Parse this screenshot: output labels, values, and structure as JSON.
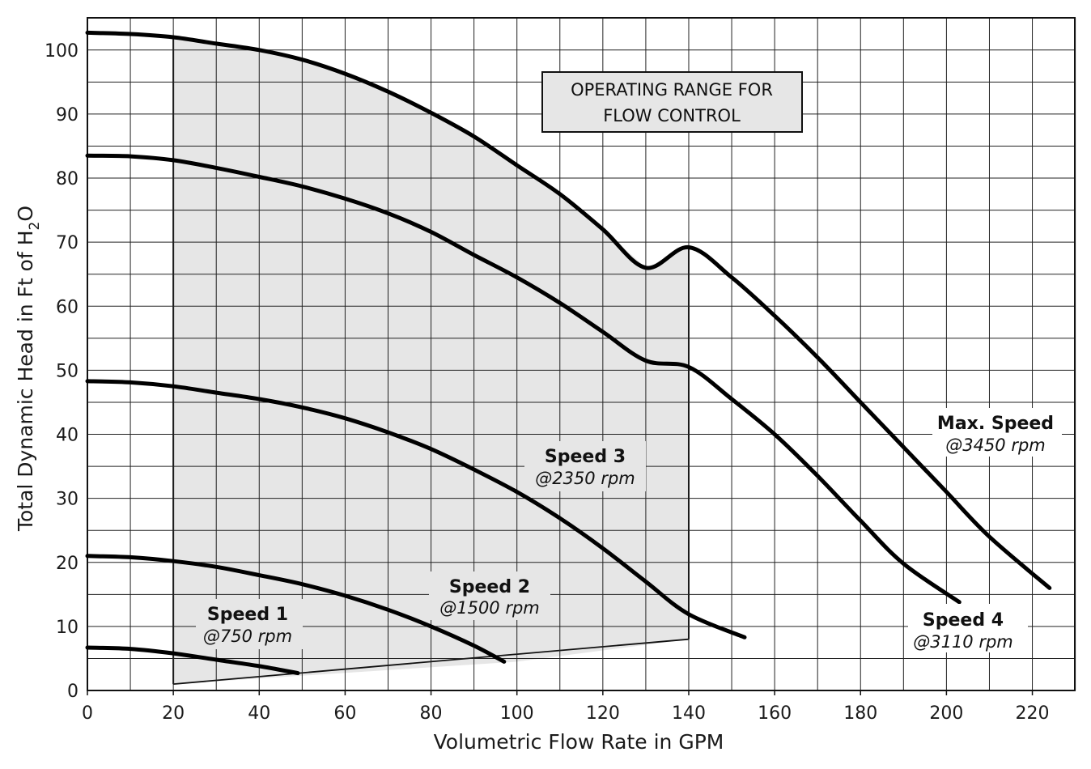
{
  "chart_data": {
    "type": "line",
    "xlabel": "Volumetric Flow Rate in GPM",
    "ylabel": "Total Dynamic Head in Ft of H2O",
    "ylabel_parts": {
      "main": "Total Dynamic Head in Ft of H",
      "sub": "2",
      "end": "O"
    },
    "xlim": [
      0,
      230
    ],
    "ylim": [
      0,
      105
    ],
    "x_ticks": [
      0,
      20,
      40,
      60,
      80,
      100,
      120,
      140,
      160,
      180,
      200,
      220
    ],
    "y_ticks": [
      0,
      10,
      20,
      30,
      40,
      50,
      60,
      70,
      80,
      90,
      100
    ],
    "grid": true,
    "operating_range": {
      "label_line1": "OPERATING RANGE FOR",
      "label_line2": "FLOW CONTROL",
      "fill_color": "#e6e6e6",
      "polygon": [
        [
          20,
          1
        ],
        [
          20,
          102
        ],
        [
          30,
          101
        ],
        [
          40,
          100
        ],
        [
          50,
          98.5
        ],
        [
          60,
          96.3
        ],
        [
          70,
          93.5
        ],
        [
          80,
          90.2
        ],
        [
          90,
          86.5
        ],
        [
          100,
          82
        ],
        [
          110,
          77.5
        ],
        [
          120,
          72
        ],
        [
          130,
          66
        ],
        [
          140,
          69.2
        ],
        [
          140,
          8
        ],
        [
          100,
          4.5
        ],
        [
          20,
          1
        ]
      ],
      "bounds": {
        "x_min": 20,
        "x_max": 140
      }
    },
    "series": [
      {
        "name": "Speed 1",
        "rpm": "@750 rpm",
        "x": [
          0,
          10,
          20,
          30,
          40,
          49
        ],
        "y": [
          6.7,
          6.5,
          5.8,
          4.8,
          3.8,
          2.7
        ]
      },
      {
        "name": "Speed 2",
        "rpm": "@1500 rpm",
        "x": [
          0,
          10,
          20,
          30,
          40,
          50,
          60,
          70,
          80,
          90,
          97
        ],
        "y": [
          21,
          20.8,
          20.2,
          19.3,
          18.0,
          16.6,
          14.8,
          12.6,
          10.0,
          7.0,
          4.5
        ]
      },
      {
        "name": "Speed 3",
        "rpm": "@2350 rpm",
        "x": [
          0,
          10,
          20,
          30,
          40,
          50,
          60,
          70,
          80,
          90,
          100,
          110,
          120,
          130,
          140,
          153
        ],
        "y": [
          48.3,
          48.1,
          47.5,
          46.5,
          45.5,
          44.2,
          42.5,
          40.3,
          37.7,
          34.5,
          31.0,
          26.9,
          22.2,
          17.0,
          11.9,
          8.3
        ]
      },
      {
        "name": "Speed 4",
        "rpm": "@3110 rpm",
        "x": [
          0,
          10,
          20,
          30,
          40,
          50,
          60,
          70,
          80,
          90,
          100,
          110,
          120,
          130,
          140,
          150,
          160,
          170,
          180,
          190,
          203
        ],
        "y": [
          83.5,
          83.4,
          82.8,
          81.6,
          80.2,
          78.7,
          76.8,
          74.5,
          71.6,
          68.0,
          64.5,
          60.5,
          56.0,
          51.5,
          50.5,
          45.5,
          40.0,
          33.5,
          26.5,
          19.8,
          13.8
        ]
      },
      {
        "name": "Max. Speed",
        "rpm": "@3450 rpm",
        "x": [
          0,
          10,
          20,
          30,
          40,
          50,
          60,
          70,
          80,
          90,
          100,
          110,
          120,
          130,
          140,
          150,
          160,
          170,
          180,
          190,
          200,
          210,
          224
        ],
        "y": [
          102.7,
          102.5,
          102.0,
          101.0,
          100.0,
          98.5,
          96.3,
          93.5,
          90.2,
          86.5,
          82.0,
          77.5,
          72.0,
          66.0,
          69.2,
          64.5,
          58.5,
          52.0,
          45.0,
          38.0,
          31.0,
          24.0,
          16.0
        ]
      }
    ]
  }
}
